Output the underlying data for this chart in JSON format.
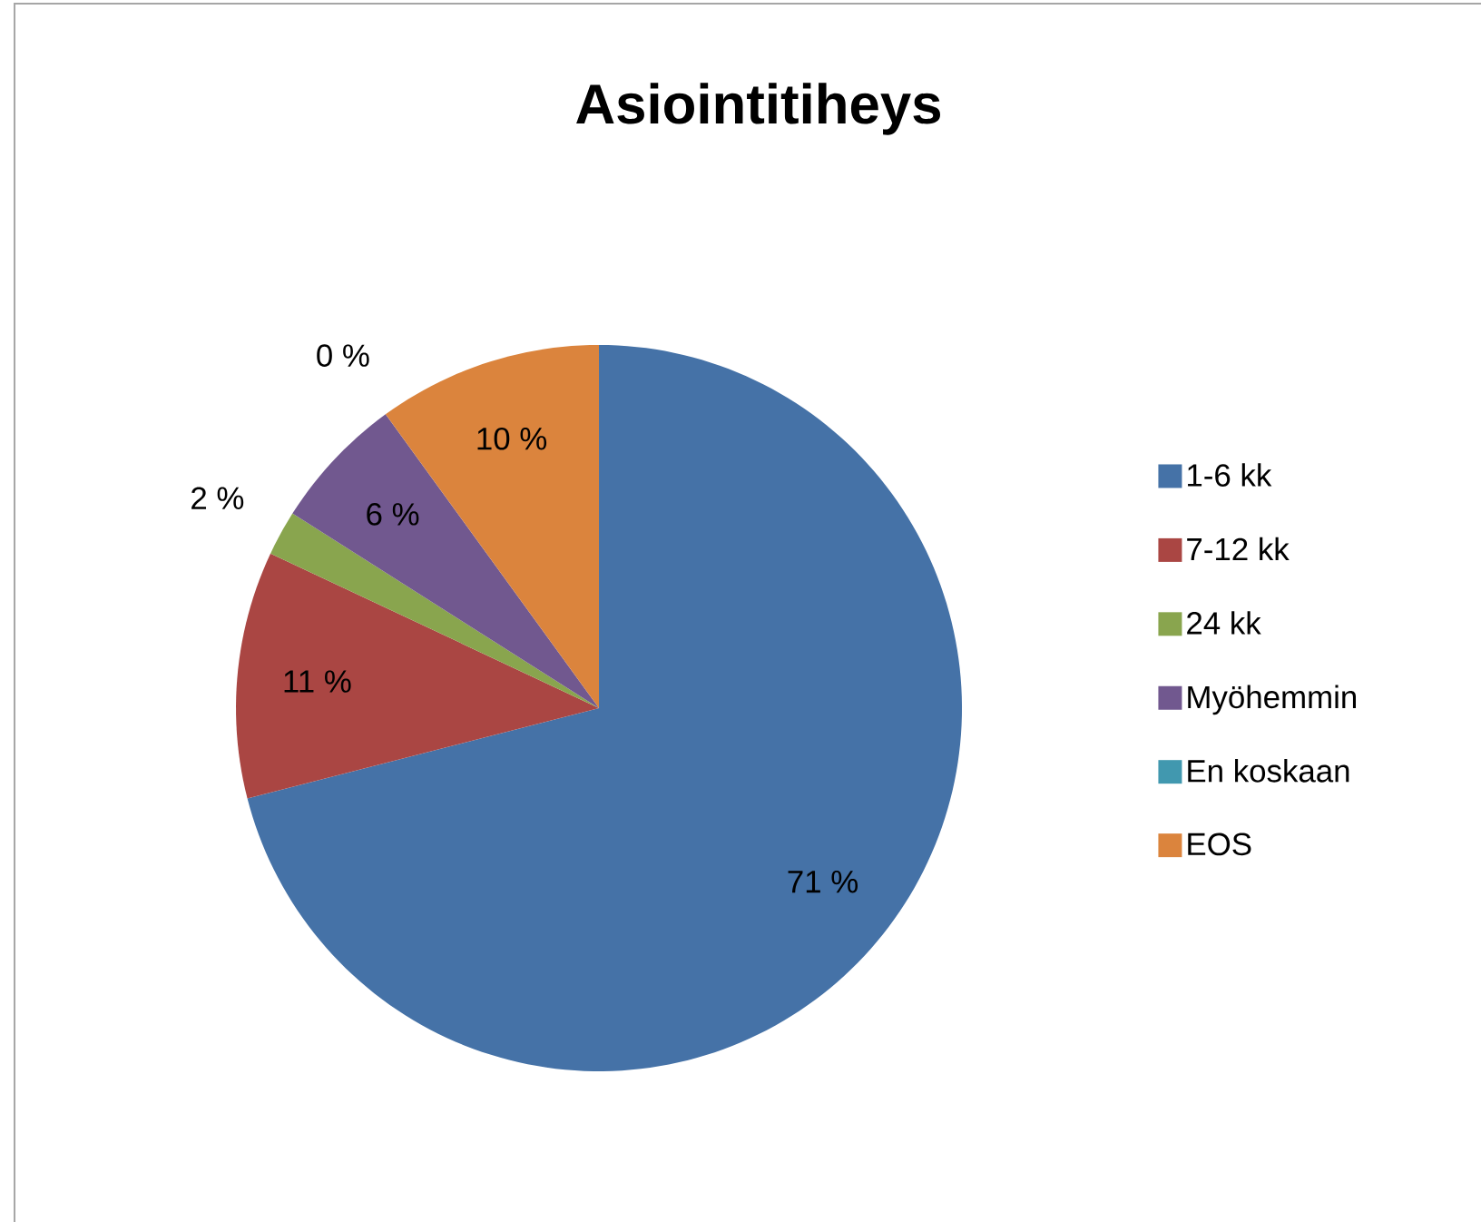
{
  "chart_data": {
    "type": "pie",
    "title": "Asiointitiheys",
    "categories": [
      "1-6 kk",
      "7-12 kk",
      "24 kk",
      "Myöhemmin",
      "En koskaan",
      "EOS"
    ],
    "values": [
      71,
      11,
      2,
      6,
      0,
      10
    ],
    "value_labels": [
      "71 %",
      "11 %",
      "2 %",
      "6 %",
      "0 %",
      "10 %"
    ],
    "colors": [
      "#4572a7",
      "#aa4643",
      "#89a54e",
      "#71588f",
      "#4198af",
      "#db843d"
    ],
    "legend": "right"
  }
}
